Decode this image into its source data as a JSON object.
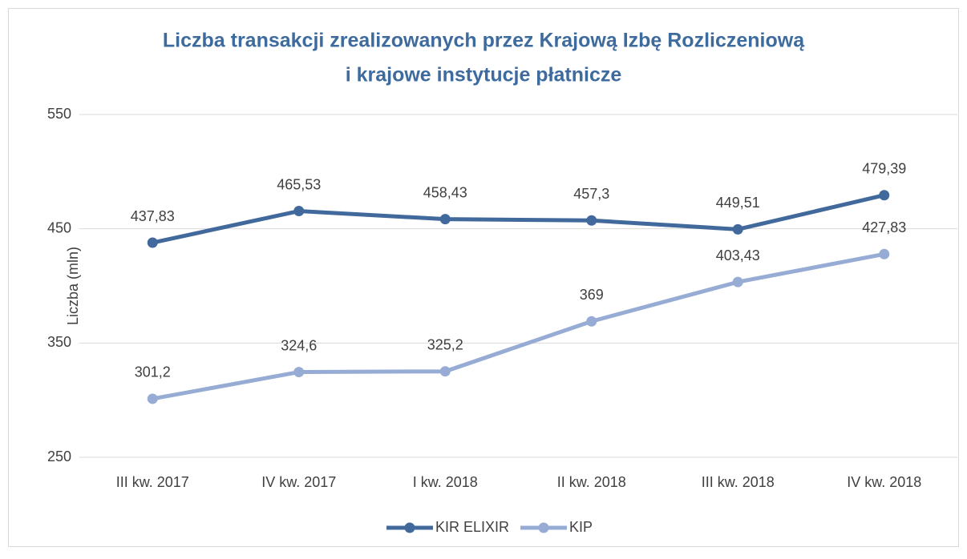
{
  "chart_data": {
    "type": "line",
    "title": [
      "Liczba transakcji zrealizowanych przez Krajową Izbę Rozliczeniową",
      "i krajowe instytucje płatnicze"
    ],
    "y_label": "Liczba  (mln)",
    "categories": [
      "III kw. 2017",
      "IV kw. 2017",
      "I kw. 2018",
      "II kw. 2018",
      "III kw. 2018",
      "IV kw. 2018"
    ],
    "series": [
      {
        "name": "KIR ELIXIR",
        "color": "#41699c",
        "values": [
          437.83,
          465.53,
          458.43,
          457.3,
          449.51,
          479.39
        ],
        "value_labels": [
          "437,83",
          "465,53",
          "458,43",
          "457,3",
          "449,51",
          "479,39"
        ]
      },
      {
        "name": "KIP",
        "color": "#97acd4",
        "values": [
          301.2,
          324.6,
          325.2,
          369,
          403.43,
          427.83
        ],
        "value_labels": [
          "301,2",
          "324,6",
          "325,2",
          "369",
          "403,43",
          "427,83"
        ]
      }
    ],
    "ylim": [
      250,
      550
    ],
    "yticks": [
      250,
      350,
      450,
      550
    ],
    "grid": true,
    "legend": "bottom"
  }
}
